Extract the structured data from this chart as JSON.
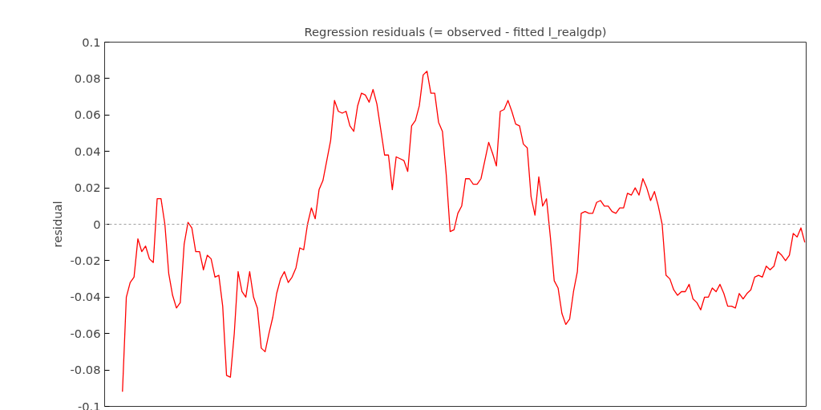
{
  "chart_data": {
    "type": "line",
    "title": "Regression residuals (= observed - fitted l_realgdp)",
    "ylabel": "residual",
    "categories": [
      null,
      null,
      null,
      null,
      null,
      null,
      null,
      null,
      null,
      null,
      null,
      null,
      null,
      null,
      null,
      null,
      null,
      null,
      null,
      null,
      null,
      null,
      null,
      null,
      null,
      null,
      null,
      null,
      null,
      null,
      null,
      null,
      null,
      null,
      null,
      null,
      null,
      null,
      null,
      null,
      null,
      null,
      null,
      null,
      null,
      null,
      null,
      null,
      null,
      null,
      null,
      null,
      null,
      null,
      null,
      null,
      null,
      null,
      null,
      null,
      null,
      null,
      null,
      null,
      null,
      null,
      null,
      null,
      null,
      null,
      null,
      null,
      null,
      null,
      null,
      null,
      null,
      null,
      null,
      null,
      null,
      null,
      null,
      null,
      null,
      null,
      null,
      null,
      null,
      null,
      null,
      null,
      null,
      null,
      null,
      null,
      null,
      null,
      null,
      null,
      null,
      null,
      null,
      null,
      null,
      null,
      null,
      null,
      null,
      null,
      null,
      null,
      null,
      null,
      null,
      null,
      null,
      null,
      null,
      null,
      null,
      null,
      null,
      null,
      null,
      null,
      null,
      null,
      null,
      null,
      null,
      null,
      null,
      null,
      null,
      null,
      null,
      null,
      null,
      null,
      null,
      null,
      null,
      null,
      null,
      null,
      null,
      null,
      null,
      null,
      null,
      null,
      null,
      null,
      null,
      null,
      null,
      null,
      null,
      null,
      null,
      null,
      null,
      null,
      null,
      null,
      null,
      null,
      null,
      null,
      null,
      null,
      null,
      null,
      null,
      null,
      null,
      null
    ],
    "series": [
      {
        "color": "#ff0000",
        "values": [
          -0.092,
          -0.04,
          -0.032,
          -0.029,
          -0.008,
          -0.015,
          -0.012,
          -0.019,
          -0.021,
          0.014,
          0.014,
          0,
          -0.027,
          -0.039,
          -0.046,
          -0.043,
          -0.011,
          0.001,
          -0.002,
          -0.015,
          -0.015,
          -0.025,
          -0.017,
          -0.019,
          -0.029,
          -0.028,
          -0.045,
          -0.083,
          -0.084,
          -0.06,
          -0.026,
          -0.037,
          -0.04,
          -0.026,
          -0.04,
          -0.046,
          -0.068,
          -0.07,
          -0.06,
          -0.051,
          -0.038,
          -0.03,
          -0.026,
          -0.032,
          -0.029,
          -0.024,
          -0.013,
          -0.014,
          0,
          0.009,
          0.003,
          0.019,
          0.024,
          0.035,
          0.046,
          0.068,
          0.062,
          0.061,
          0.062,
          0.054,
          0.051,
          0.065,
          0.072,
          0.071,
          0.067,
          0.074,
          0.066,
          0.052,
          0.038,
          0.038,
          0.019,
          0.037,
          0.036,
          0.035,
          0.029,
          0.054,
          0.057,
          0.065,
          0.082,
          0.084,
          0.072,
          0.072,
          0.056,
          0.051,
          0.027,
          -0.004,
          -0.003,
          0.006,
          0.01,
          0.025,
          0.025,
          0.022,
          0.022,
          0.025,
          0.035,
          0.045,
          0.039,
          0.032,
          0.062,
          0.063,
          0.068,
          0.062,
          0.055,
          0.054,
          0.044,
          0.042,
          0.015,
          0.005,
          0.026,
          0.01,
          0.014,
          -0.007,
          -0.031,
          -0.035,
          -0.049,
          -0.055,
          -0.052,
          -0.037,
          -0.026,
          0.006,
          0.007,
          0.006,
          0.006,
          0.012,
          0.013,
          0.01,
          0.01,
          0.007,
          0.006,
          0.009,
          0.009,
          0.017,
          0.016,
          0.02,
          0.016,
          0.025,
          0.02,
          0.013,
          0.018,
          0.01,
          0,
          -0.028,
          -0.03,
          -0.036,
          -0.039,
          -0.037,
          -0.037,
          -0.033,
          -0.041,
          -0.043,
          -0.047,
          -0.04,
          -0.04,
          -0.035,
          -0.037,
          -0.033,
          -0.038,
          -0.045,
          -0.045,
          -0.046,
          -0.038,
          -0.041,
          -0.038,
          -0.036,
          -0.029,
          -0.028,
          -0.029,
          -0.023,
          -0.025,
          -0.023,
          -0.015,
          -0.017,
          -0.02,
          -0.017,
          -0.005,
          -0.007,
          -0.002,
          -0.01
        ]
      }
    ],
    "ylim": [
      -0.1,
      0.1
    ],
    "yticks": [
      -0.1,
      -0.08,
      -0.06,
      -0.04,
      -0.02,
      0,
      0.02,
      0.04,
      0.06,
      0.08,
      0.1
    ],
    "tick_labels": "y",
    "grid": false,
    "line_style": "solid",
    "ref_lines": [
      {
        "axis": "y",
        "value": 0,
        "color": "#a0a0a0",
        "line_style": "dotted"
      }
    ]
  }
}
